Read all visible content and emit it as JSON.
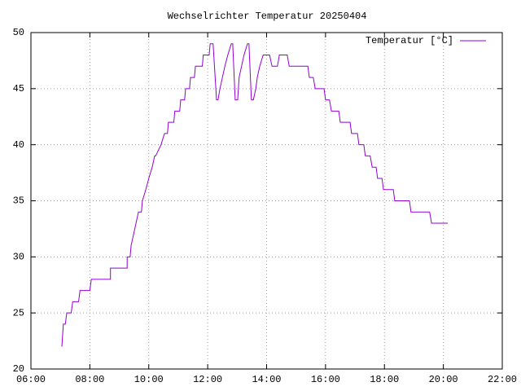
{
  "chart_data": {
    "type": "line",
    "title": "Wechselrichter Temperatur 20250404",
    "legend": "top-right",
    "grid": true,
    "xlim": [
      "06:00",
      "22:00"
    ],
    "xticks": [
      "06:00",
      "08:00",
      "10:00",
      "12:00",
      "14:00",
      "16:00",
      "18:00",
      "20:00",
      "22:00"
    ],
    "ylim": [
      20,
      50
    ],
    "yticks": [
      20,
      25,
      30,
      35,
      40,
      45,
      50
    ],
    "x": [
      "07:03",
      "07:06",
      "07:10",
      "07:13",
      "07:22",
      "07:25",
      "07:37",
      "07:40",
      "08:00",
      "08:03",
      "08:42",
      "08:42",
      "09:16",
      "09:16",
      "09:22",
      "09:24",
      "09:29",
      "09:34",
      "09:39",
      "09:45",
      "09:47",
      "09:54",
      "10:00",
      "10:07",
      "10:12",
      "10:14",
      "10:25",
      "10:32",
      "10:38",
      "10:40",
      "10:51",
      "10:53",
      "11:03",
      "11:05",
      "11:13",
      "11:15",
      "11:23",
      "11:25",
      "11:33",
      "11:35",
      "11:49",
      "11:51",
      "12:03",
      "12:05",
      "12:11",
      "12:18",
      "12:21",
      "12:25",
      "12:30",
      "12:35",
      "12:41",
      "12:48",
      "12:51",
      "12:56",
      "13:01",
      "13:04",
      "13:09",
      "13:14",
      "13:21",
      "13:24",
      "13:29",
      "13:33",
      "13:38",
      "13:41",
      "13:46",
      "13:53",
      "14:06",
      "14:11",
      "14:22",
      "14:26",
      "14:42",
      "14:46",
      "15:24",
      "15:27",
      "15:35",
      "15:39",
      "15:57",
      "16:00",
      "16:08",
      "16:12",
      "16:27",
      "16:30",
      "16:50",
      "16:53",
      "17:05",
      "17:08",
      "17:18",
      "17:21",
      "17:31",
      "17:35",
      "17:43",
      "17:46",
      "17:55",
      "17:58",
      "18:18",
      "18:21",
      "18:51",
      "18:54",
      "19:32",
      "19:36",
      "20:09"
    ],
    "series": [
      {
        "name": "Temperatur [°C]",
        "color": "#9400d3",
        "values": [
          22,
          24,
          24,
          25,
          25,
          26,
          26,
          27,
          27,
          28,
          28,
          29,
          29,
          30,
          30,
          31,
          32,
          33,
          34,
          34,
          35,
          36,
          37,
          38,
          39,
          39,
          40,
          41,
          41,
          42,
          42,
          43,
          43,
          44,
          44,
          45,
          45,
          46,
          46,
          47,
          47,
          48,
          48,
          49,
          49,
          44,
          44,
          45,
          46,
          47,
          48,
          49,
          49,
          44,
          44,
          46,
          47,
          48,
          49,
          49,
          44,
          44,
          45,
          46,
          47,
          48,
          48,
          47,
          47,
          48,
          48,
          47,
          47,
          46,
          46,
          45,
          45,
          44,
          44,
          43,
          43,
          42,
          42,
          41,
          41,
          40,
          40,
          39,
          39,
          38,
          38,
          37,
          37,
          36,
          36,
          35,
          35,
          34,
          34,
          33,
          33
        ]
      }
    ]
  }
}
